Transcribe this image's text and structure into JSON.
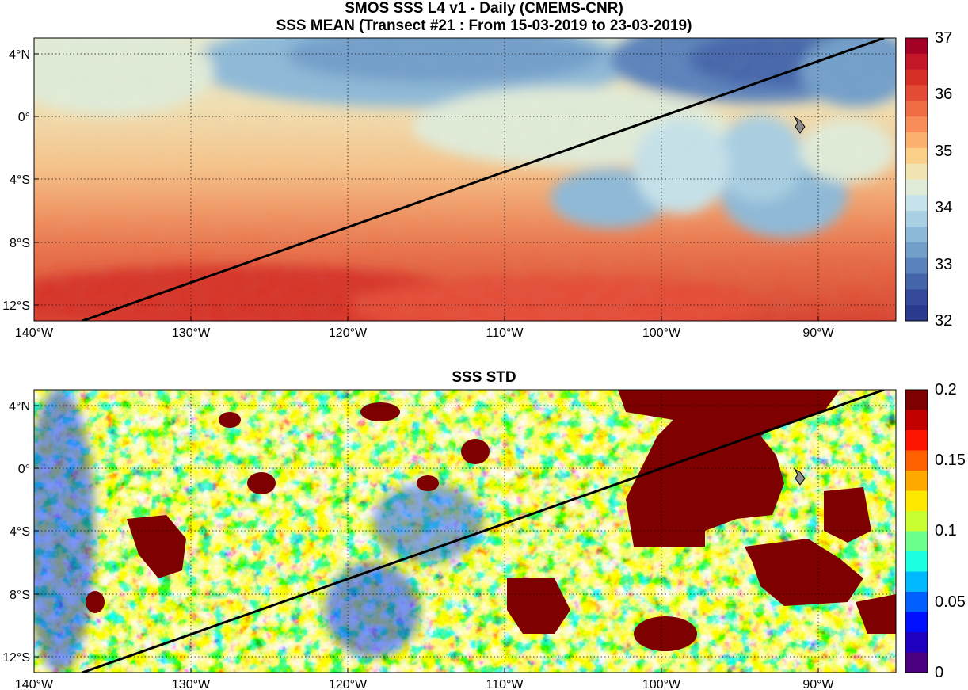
{
  "titles": {
    "line1": "SMOS SSS L4 v1 - Daily (CMEMS-CNR)",
    "line2": "SSS MEAN (Transect #21 : From 15-03-2019 to 23-03-2019)",
    "panel2": "SSS STD"
  },
  "axes": {
    "lon_ticks": [
      "140°W",
      "130°W",
      "120°W",
      "110°W",
      "100°W",
      "90°W"
    ],
    "lat_ticks": [
      "4°N",
      "0°",
      "4°S",
      "8°S",
      "12°S"
    ]
  },
  "mean_colorbar": {
    "ticks": [
      "37",
      "36",
      "35",
      "34",
      "33",
      "32"
    ],
    "colors": [
      "#a50026",
      "#c4172a",
      "#d73027",
      "#e54c35",
      "#ef6c45",
      "#f88d59",
      "#fbb06e",
      "#fdd08a",
      "#f2e4b0",
      "#e1ecd8",
      "#c6e2ea",
      "#a9cfe2",
      "#8db9d8",
      "#729fca",
      "#5a82bc",
      "#4465aa",
      "#354a9a",
      "#2a3b8f"
    ]
  },
  "std_colorbar": {
    "ticks": [
      "0.2",
      "0.15",
      "0.1",
      "0.05",
      "0"
    ],
    "colors": [
      "#7f0000",
      "#c30000",
      "#ff1400",
      "#ff6000",
      "#ffa800",
      "#ffe800",
      "#c8ff30",
      "#6cff8c",
      "#1cffe0",
      "#00b8ff",
      "#0060ff",
      "#0010ff",
      "#2000c0",
      "#4b0082"
    ]
  },
  "map_colors": {
    "land": "#8c8c8c",
    "transect": "#000000"
  },
  "chart_data": [
    {
      "type": "heatmap",
      "title": "SSS MEAN (Transect #21 : From 15-03-2019 to 23-03-2019)",
      "xlabel": "",
      "ylabel": "",
      "xlim": [
        -140,
        -85
      ],
      "ylim": [
        -13,
        5
      ],
      "colorbar_range": [
        32,
        37
      ],
      "transect_line": {
        "lon": [
          -137,
          -85
        ],
        "lat": [
          -13,
          5
        ]
      },
      "regions": {
        "fresh_low_salinity_north": "4°N–2°N, 100°W–86°W (~32.5–33.5)",
        "high_salinity_south": "8°S–13°S (~35.5–36.3)",
        "mid_band": "0°–4°S (~34.8–35.2)",
        "fresh_pools_east": "4°S–8°S, 108°W–90°W (~34)"
      }
    },
    {
      "type": "heatmap",
      "title": "SSS STD",
      "xlabel": "",
      "ylabel": "",
      "xlim": [
        -140,
        -85
      ],
      "ylim": [
        -13,
        5
      ],
      "colorbar_range": [
        0,
        0.2
      ],
      "transect_line": {
        "lon": [
          -137,
          -85
        ],
        "lat": [
          -13,
          5
        ]
      },
      "regions": {
        "saturated_high_std_east": "5°N–4°S, 100°W–86°W (>0.2)",
        "low_std_west": "140°W–136°W (~0.05)",
        "background": "~0.08–0.15 noisy"
      }
    }
  ]
}
